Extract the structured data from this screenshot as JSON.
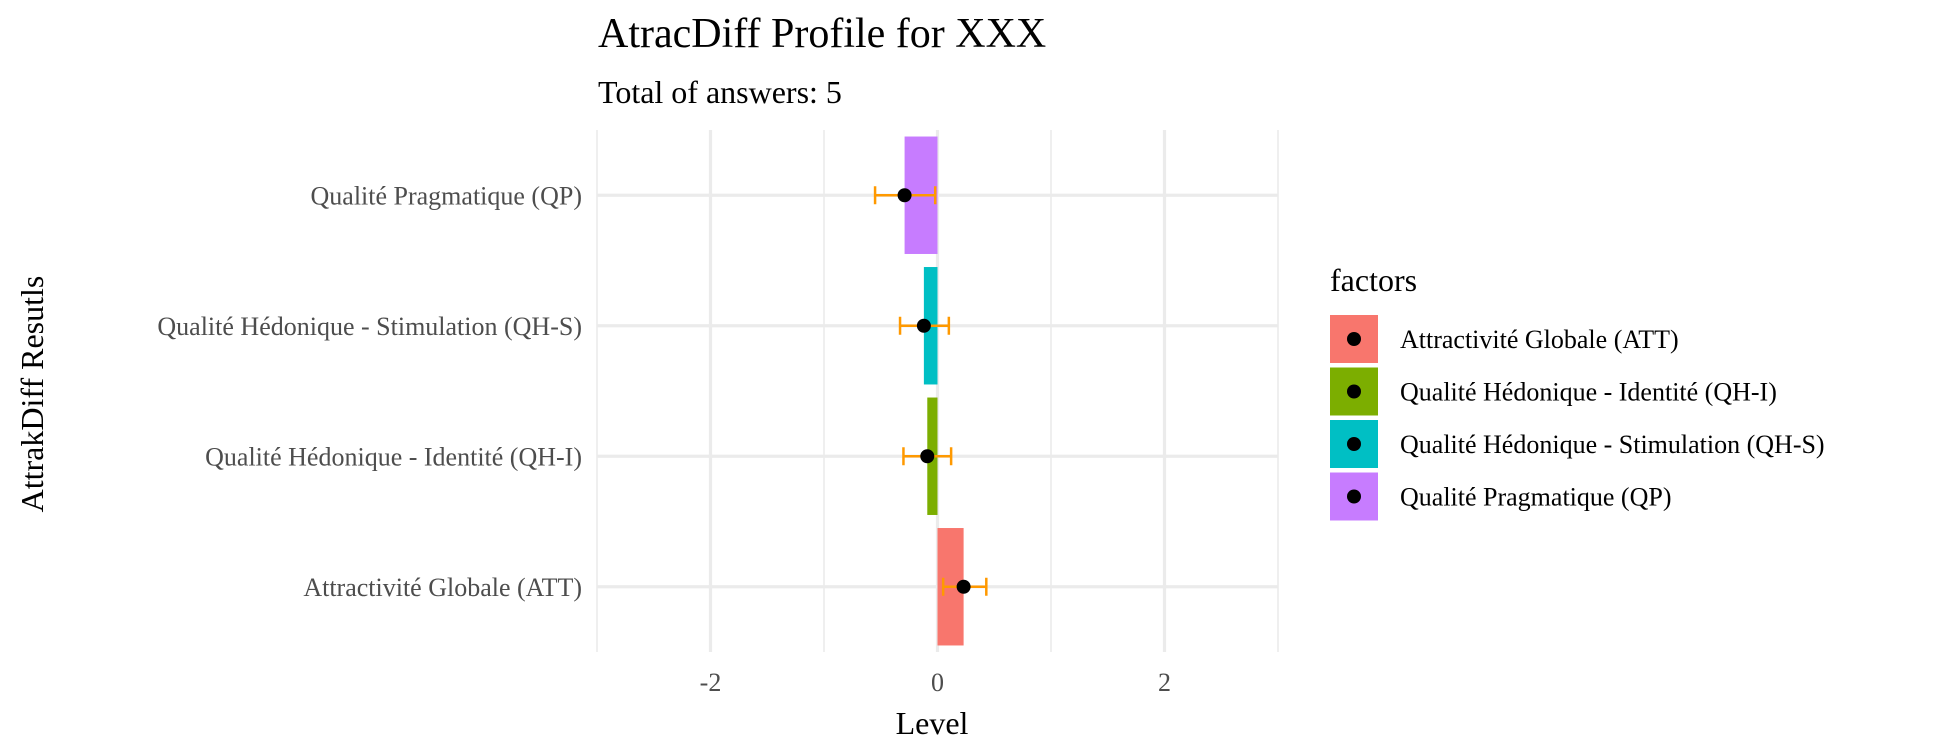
{
  "chart_data": {
    "type": "bar",
    "orientation": "horizontal",
    "title": "AtracDiff Profile for XXX",
    "subtitle": "Total of answers: 5",
    "xlabel": "Level",
    "ylabel": "AttrakDiff Resutls",
    "xlim": [
      -3,
      3
    ],
    "xticks": [
      -2,
      0,
      2
    ],
    "xtick_labels": [
      "-2",
      "0",
      "2"
    ],
    "grid": true,
    "categories": [
      "Attractivité Globale (ATT)",
      "Qualité Hédonique - Identité (QH-I)",
      "Qualité Hédonique - Stimulation (QH-S)",
      "Qualité Pragmatique (QP)"
    ],
    "values": [
      0.23,
      -0.09,
      -0.12,
      -0.29
    ],
    "error_low": [
      0.05,
      -0.3,
      -0.33,
      -0.55
    ],
    "error_high": [
      0.43,
      0.12,
      0.1,
      -0.02
    ],
    "colors": [
      "#F8766D",
      "#7CAE00",
      "#00BFC4",
      "#C77CFF"
    ],
    "point_color": "#000000",
    "errorbar_color": "#FF9900",
    "legend": {
      "title": "factors",
      "placement": "right",
      "entries": [
        "Attractivité Globale (ATT)",
        "Qualité Hédonique - Identité (QH-I)",
        "Qualité Hédonique - Stimulation (QH-S)",
        "Qualité Pragmatique (QP)"
      ]
    }
  }
}
